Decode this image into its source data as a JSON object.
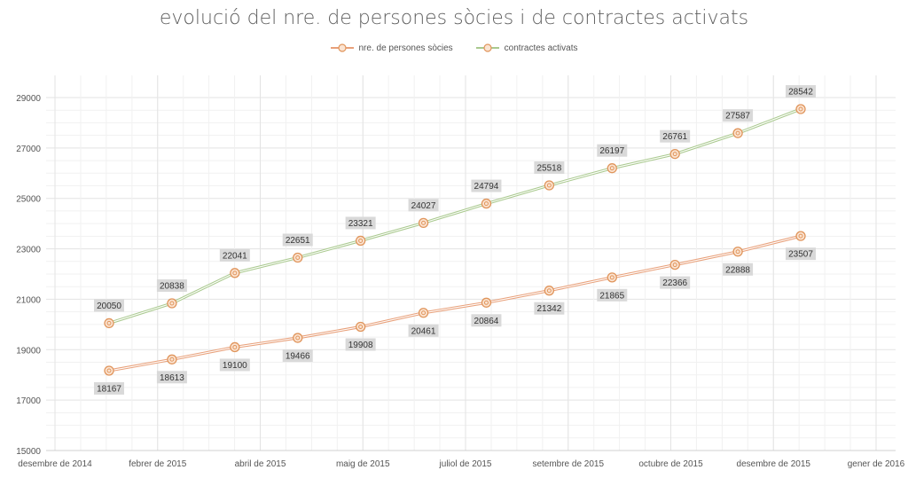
{
  "chart_data": {
    "type": "line",
    "title": "evolució del nre. de persones sòcies i de contractes activats",
    "x_ticks": [
      "desembre de 2014",
      "febrer de 2015",
      "abril de 2015",
      "maig de 2015",
      "juliol de 2015",
      "setembre de 2015",
      "octubre de 2015",
      "desembre de 2015",
      "gener de 2016"
    ],
    "x_points": [
      "2015-01-01",
      "2015-02-01",
      "2015-03-01",
      "2015-04-01",
      "2015-05-01",
      "2015-06-01",
      "2015-07-01",
      "2015-08-01",
      "2015-09-01",
      "2015-10-01",
      "2015-11-01",
      "2015-12-01"
    ],
    "ylim": [
      15000,
      29000
    ],
    "y_ticks": [
      15000,
      17000,
      19000,
      21000,
      23000,
      25000,
      27000,
      29000
    ],
    "grid": true,
    "legend_position": "top-center",
    "series": [
      {
        "name": "nre. de persones sòcies",
        "color": "#e8a07a",
        "values": [
          18167,
          18613,
          19100,
          19466,
          19908,
          20461,
          20864,
          21342,
          21865,
          22366,
          22888,
          23507
        ]
      },
      {
        "name": "contractes activats",
        "color": "#a9c98e",
        "values": [
          20050,
          20838,
          22041,
          22651,
          23321,
          24027,
          24794,
          25518,
          26197,
          26761,
          27587,
          28542
        ]
      }
    ],
    "marker_color": "#e0955c"
  }
}
